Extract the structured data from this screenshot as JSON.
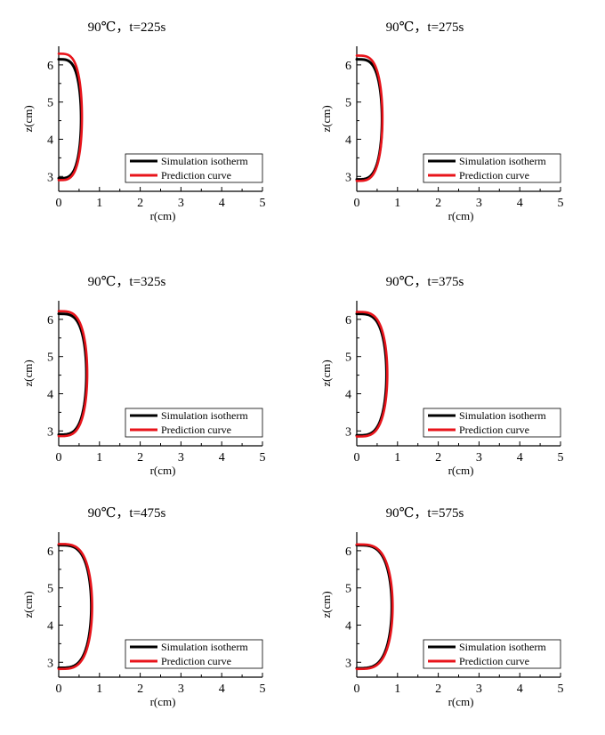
{
  "figure": {
    "legend_simulation": "Simulation isotherm",
    "legend_prediction": "Prediction curve",
    "colors": {
      "simulation": "#000000",
      "prediction": "#e8141b",
      "axis": "#000000"
    }
  },
  "chart_data": [
    {
      "type": "line",
      "title": "90℃，t=225s",
      "xlabel": "r(cm)",
      "ylabel": "z(cm)",
      "xlim": [
        0,
        5
      ],
      "ylim": [
        2.6,
        6.5
      ],
      "xticks": [
        "0",
        "1",
        "2",
        "3",
        "4",
        "5"
      ],
      "yticks": [
        "3",
        "4",
        "5",
        "6"
      ],
      "grid": false,
      "legend_position": "bottom-right",
      "series": [
        {
          "name": "Simulation isotherm",
          "color": "#000000",
          "rmax": 0.55,
          "ztop": 6.15,
          "zbot": 2.95
        },
        {
          "name": "Prediction curve",
          "color": "#e8141b",
          "rmax": 0.57,
          "ztop": 6.3,
          "zbot": 2.9
        }
      ]
    },
    {
      "type": "line",
      "title": "90℃，t=275s",
      "xlabel": "r(cm)",
      "ylabel": "z(cm)",
      "xlim": [
        0,
        5
      ],
      "ylim": [
        2.6,
        6.5
      ],
      "xticks": [
        "0",
        "1",
        "2",
        "3",
        "4",
        "5"
      ],
      "yticks": [
        "3",
        "4",
        "5",
        "6"
      ],
      "grid": false,
      "legend_position": "bottom-right",
      "series": [
        {
          "name": "Simulation isotherm",
          "color": "#000000",
          "rmax": 0.62,
          "ztop": 6.15,
          "zbot": 2.92
        },
        {
          "name": "Prediction curve",
          "color": "#e8141b",
          "rmax": 0.63,
          "ztop": 6.25,
          "zbot": 2.88
        }
      ]
    },
    {
      "type": "line",
      "title": "90℃，t=325s",
      "xlabel": "r(cm)",
      "ylabel": "z(cm)",
      "xlim": [
        0,
        5
      ],
      "ylim": [
        2.6,
        6.5
      ],
      "xticks": [
        "0",
        "1",
        "2",
        "3",
        "4",
        "5"
      ],
      "yticks": [
        "3",
        "4",
        "5",
        "6"
      ],
      "grid": false,
      "legend_position": "bottom-right",
      "series": [
        {
          "name": "Simulation isotherm",
          "color": "#000000",
          "rmax": 0.68,
          "ztop": 6.15,
          "zbot": 2.9
        },
        {
          "name": "Prediction curve",
          "color": "#e8141b",
          "rmax": 0.7,
          "ztop": 6.22,
          "zbot": 2.86
        }
      ]
    },
    {
      "type": "line",
      "title": "90℃，t=375s",
      "xlabel": "r(cm)",
      "ylabel": "z(cm)",
      "xlim": [
        0,
        5
      ],
      "ylim": [
        2.6,
        6.5
      ],
      "xticks": [
        "0",
        "1",
        "2",
        "3",
        "4",
        "5"
      ],
      "yticks": [
        "3",
        "4",
        "5",
        "6"
      ],
      "grid": false,
      "legend_position": "bottom-right",
      "series": [
        {
          "name": "Simulation isotherm",
          "color": "#000000",
          "rmax": 0.73,
          "ztop": 6.15,
          "zbot": 2.88
        },
        {
          "name": "Prediction curve",
          "color": "#e8141b",
          "rmax": 0.75,
          "ztop": 6.2,
          "zbot": 2.85
        }
      ]
    },
    {
      "type": "line",
      "title": "90℃，t=475s",
      "xlabel": "r(cm)",
      "ylabel": "z(cm)",
      "xlim": [
        0,
        5
      ],
      "ylim": [
        2.6,
        6.5
      ],
      "xticks": [
        "0",
        "1",
        "2",
        "3",
        "4",
        "5"
      ],
      "yticks": [
        "3",
        "4",
        "5",
        "6"
      ],
      "grid": false,
      "legend_position": "bottom-right",
      "series": [
        {
          "name": "Simulation isotherm",
          "color": "#000000",
          "rmax": 0.8,
          "ztop": 6.15,
          "zbot": 2.85
        },
        {
          "name": "Prediction curve",
          "color": "#e8141b",
          "rmax": 0.82,
          "ztop": 6.18,
          "zbot": 2.82
        }
      ]
    },
    {
      "type": "line",
      "title": "90℃，t=575s",
      "xlabel": "r(cm)",
      "ylabel": "z(cm)",
      "xlim": [
        0,
        5
      ],
      "ylim": [
        2.6,
        6.5
      ],
      "xticks": [
        "0",
        "1",
        "2",
        "3",
        "4",
        "5"
      ],
      "yticks": [
        "3",
        "4",
        "5",
        "6"
      ],
      "grid": false,
      "legend_position": "bottom-right",
      "series": [
        {
          "name": "Simulation isotherm",
          "color": "#000000",
          "rmax": 0.86,
          "ztop": 6.15,
          "zbot": 2.84
        },
        {
          "name": "Prediction curve",
          "color": "#e8141b",
          "rmax": 0.88,
          "ztop": 6.17,
          "zbot": 2.82
        }
      ]
    }
  ]
}
